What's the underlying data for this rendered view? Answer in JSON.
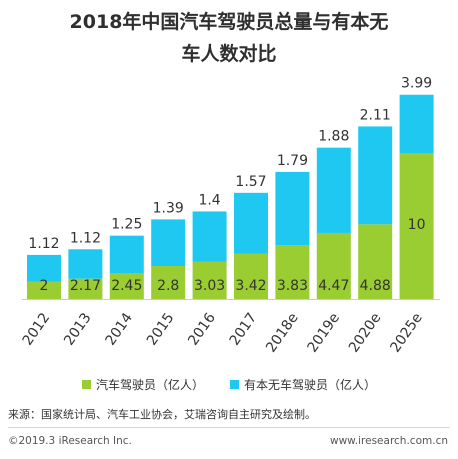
{
  "title_line1": "2018年中国汽车驾驶员总量与有本无",
  "title_line2": "车人数对比",
  "colors": {
    "drivers": "#9ACD32",
    "no_car": "#1EC8F0",
    "axis": "#cccccc",
    "label": "#333333"
  },
  "chart_data": {
    "type": "bar",
    "stacked": true,
    "categories": [
      "2012",
      "2013",
      "2014",
      "2015",
      "2016",
      "2017",
      "2018e",
      "2019e",
      "2020e",
      "2025e"
    ],
    "series": [
      {
        "name": "汽车驾驶员（亿人）",
        "values": [
          2,
          2.17,
          2.45,
          2.8,
          3.03,
          3.42,
          3.83,
          4.47,
          4.88,
          10
        ]
      },
      {
        "name": "有本无车驾驶员（亿人）",
        "values": [
          1.12,
          1.12,
          1.25,
          1.39,
          1.4,
          1.57,
          1.79,
          1.88,
          2.11,
          3.99
        ]
      }
    ],
    "legend_position": "bottom",
    "grid": false
  },
  "source_text": "来源：国家统计局、汽车工业协会，艾瑞咨询自主研究及绘制。",
  "copyright_text": "©2019.3 iResearch Inc.",
  "website_text": "www.iresearch.com.cn"
}
